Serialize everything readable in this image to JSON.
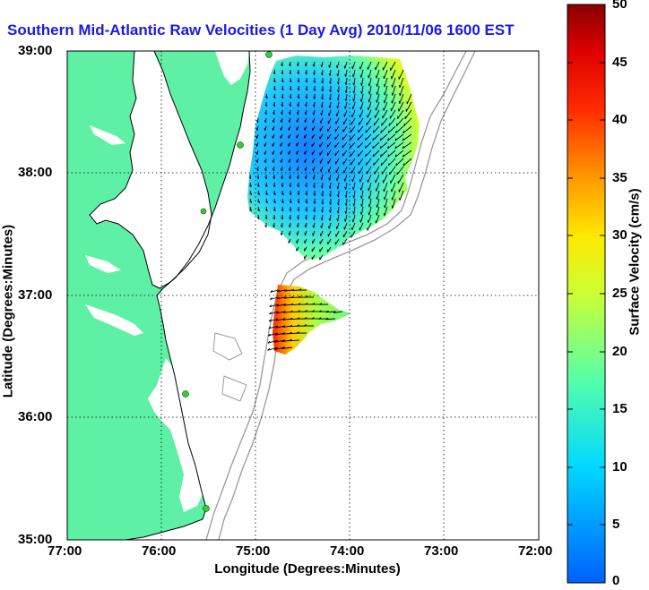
{
  "title": "Southern Mid-Atlantic Raw Velocities (1 Day Avg) 2010/11/06 1600 EST",
  "map": {
    "lon_range": [
      -77,
      -72
    ],
    "lat_range": [
      35,
      39
    ],
    "x_ticks": [
      "77:00",
      "76:00",
      "75:00",
      "74:00",
      "73:00",
      "72:00"
    ],
    "y_ticks": [
      "39:00",
      "38:00",
      "37:00",
      "36:00",
      "35:00"
    ],
    "xlabel": "Longitude (Degrees:Minutes)",
    "ylabel": "Latitude (Degrees:Minutes)",
    "grid": "dotted",
    "land_color": "#5ef0a4",
    "contour_color": "#9a9a9a",
    "station_color": "#2ad42a"
  },
  "colorbar": {
    "label": "Surface Velocity (cm/s)",
    "range": [
      0,
      50
    ],
    "ticks": [
      "50",
      "45",
      "40",
      "35",
      "30",
      "25",
      "20",
      "15",
      "10",
      "5",
      "0"
    ],
    "colormap": "jet"
  }
}
